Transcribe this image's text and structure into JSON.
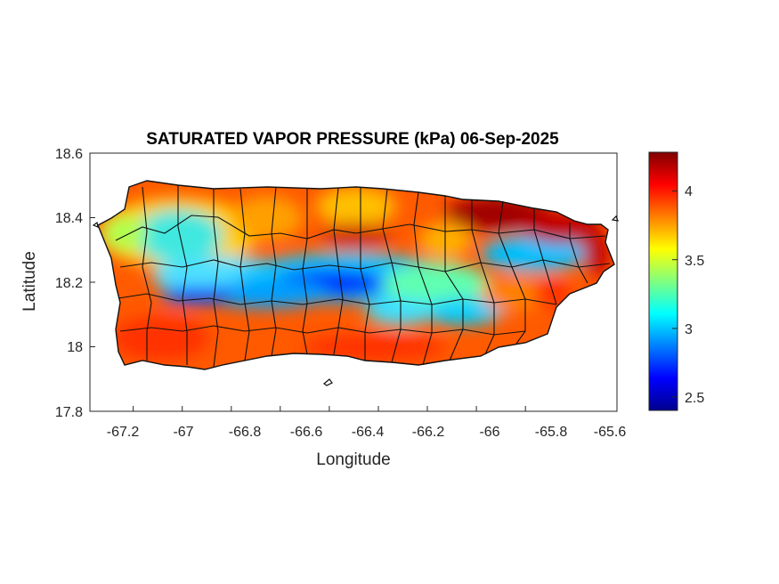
{
  "figure": {
    "title": "SATURATED VAPOR PRESSURE (kPa) 06-Sep-2025",
    "xlabel": "Longitude",
    "ylabel": "Latitude",
    "background": "#ffffff"
  },
  "map": {
    "region": "Puerto Rico",
    "boundaries": "municipality outlines",
    "xlim": [
      -67.3,
      -65.58
    ],
    "ylim": [
      17.8,
      18.6
    ],
    "xticks": [
      "-67.2",
      "-67",
      "-66.8",
      "-66.6",
      "-66.4",
      "-66.2",
      "-66",
      "-65.8",
      "-65.6"
    ],
    "yticks": [
      "18.6",
      "18.4",
      "18.2",
      "18",
      "17.8"
    ],
    "colormap": "jet"
  },
  "colorbar": {
    "range": [
      2.4,
      4.28
    ],
    "ticks": [
      "4",
      "3.5",
      "3",
      "2.5"
    ]
  }
}
